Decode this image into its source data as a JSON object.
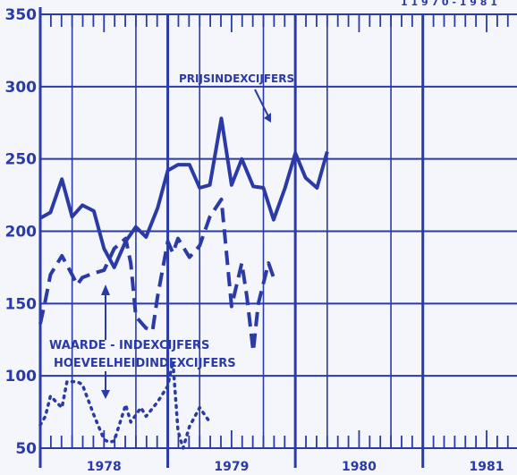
{
  "chart_data": {
    "type": "line",
    "y_ticks": [
      350,
      300,
      250,
      200,
      150,
      100,
      50
    ],
    "ylim": [
      50,
      350
    ],
    "x_tick_labels": [
      "1978",
      "1979",
      "1980",
      "1981"
    ],
    "x_tick_label_values": [
      1978.5,
      1979.5,
      1980.5,
      1981.5
    ],
    "xlim": [
      1978,
      1982
    ],
    "grid": true,
    "corner_text": "1 1 9 7 0 - 1 9 8 1",
    "annotations": [
      {
        "text": "PRIJSINDEXCIJFERS"
      },
      {
        "text": "WAARDE - INDEXCIJFERS"
      },
      {
        "text": "HOEVEELHEIDINDEXCIJFERS"
      }
    ],
    "series": [
      {
        "name": "PRIJSINDEXCIJFERS",
        "style": "solid",
        "color": "#2a3aa6",
        "points": [
          [
            1978.0,
            209
          ],
          [
            1978.08,
            213
          ],
          [
            1978.17,
            236
          ],
          [
            1978.25,
            210
          ],
          [
            1978.33,
            218
          ],
          [
            1978.42,
            214
          ],
          [
            1978.5,
            188
          ],
          [
            1978.58,
            175
          ],
          [
            1978.67,
            193
          ],
          [
            1978.75,
            203
          ],
          [
            1978.83,
            196
          ],
          [
            1978.92,
            216
          ],
          [
            1979.0,
            242
          ],
          [
            1979.08,
            246
          ],
          [
            1979.17,
            246
          ],
          [
            1979.25,
            230
          ],
          [
            1979.33,
            232
          ],
          [
            1979.42,
            278
          ],
          [
            1979.5,
            232
          ],
          [
            1979.58,
            250
          ],
          [
            1979.67,
            231
          ],
          [
            1979.75,
            230
          ],
          [
            1979.83,
            208
          ],
          [
            1979.92,
            230
          ],
          [
            1980.0,
            254
          ],
          [
            1980.08,
            237
          ],
          [
            1980.17,
            230
          ],
          [
            1980.25,
            255
          ]
        ]
      },
      {
        "name": "WAARDE - INDEXCIJFERS",
        "style": "dashed",
        "color": "#2a3aa6",
        "points": [
          [
            1978.0,
            136
          ],
          [
            1978.04,
            152
          ],
          [
            1978.08,
            170
          ],
          [
            1978.17,
            183
          ],
          [
            1978.25,
            170
          ],
          [
            1978.29,
            163
          ],
          [
            1978.33,
            168
          ],
          [
            1978.42,
            171
          ],
          [
            1978.5,
            173
          ],
          [
            1978.58,
            188
          ],
          [
            1978.67,
            195
          ],
          [
            1978.71,
            178
          ],
          [
            1978.75,
            141
          ],
          [
            1978.83,
            133
          ],
          [
            1978.88,
            131
          ],
          [
            1978.92,
            155
          ],
          [
            1979.0,
            193
          ],
          [
            1979.04,
            185
          ],
          [
            1979.08,
            195
          ],
          [
            1979.17,
            182
          ],
          [
            1979.25,
            190
          ],
          [
            1979.33,
            210
          ],
          [
            1979.42,
            222
          ],
          [
            1979.5,
            148
          ],
          [
            1979.58,
            178
          ],
          [
            1979.62,
            155
          ],
          [
            1979.67,
            117
          ],
          [
            1979.71,
            150
          ],
          [
            1979.79,
            178
          ],
          [
            1979.83,
            168
          ]
        ]
      },
      {
        "name": "HOEVEELHEIDINDEXCIJFERS",
        "style": "dotted",
        "color": "#2a3aa6",
        "points": [
          [
            1978.0,
            66
          ],
          [
            1978.04,
            72
          ],
          [
            1978.08,
            86
          ],
          [
            1978.17,
            78
          ],
          [
            1978.21,
            96
          ],
          [
            1978.29,
            96
          ],
          [
            1978.33,
            94
          ],
          [
            1978.42,
            73
          ],
          [
            1978.5,
            56
          ],
          [
            1978.54,
            54
          ],
          [
            1978.58,
            55
          ],
          [
            1978.67,
            80
          ],
          [
            1978.71,
            68
          ],
          [
            1978.79,
            78
          ],
          [
            1978.83,
            72
          ],
          [
            1978.92,
            82
          ],
          [
            1979.0,
            93
          ],
          [
            1979.04,
            110
          ],
          [
            1979.08,
            62
          ],
          [
            1979.12,
            50
          ],
          [
            1979.17,
            65
          ],
          [
            1979.25,
            78
          ],
          [
            1979.33,
            68
          ]
        ]
      }
    ]
  }
}
